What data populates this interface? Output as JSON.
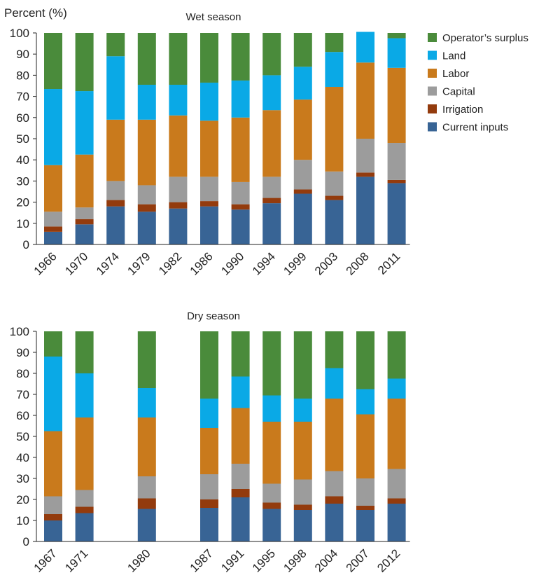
{
  "ylabel": "Percent (%)",
  "legend": [
    {
      "name": "Operator’s surplus",
      "color": "#4a8b3b"
    },
    {
      "name": "Land",
      "color": "#0aa9e6"
    },
    {
      "name": "Labor",
      "color": "#c97a1c"
    },
    {
      "name": "Capital",
      "color": "#9c9c9c"
    },
    {
      "name": "Irrigation",
      "color": "#933b0d"
    },
    {
      "name": "Current inputs",
      "color": "#386495"
    }
  ],
  "chart_data": [
    {
      "type": "bar",
      "stacked": true,
      "title": "Wet season",
      "ylabel": "Percent (%)",
      "ylim": [
        0,
        100
      ],
      "yticks": [
        0,
        10,
        20,
        30,
        40,
        50,
        60,
        70,
        80,
        90,
        100
      ],
      "categories": [
        "1966",
        "1970",
        "1974",
        "1979",
        "1982",
        "1986",
        "1990",
        "1994",
        "1999",
        "2003",
        "2008",
        "2011"
      ],
      "series": [
        {
          "name": "Current inputs",
          "color": "#386495",
          "values": [
            6,
            9.5,
            18,
            15.5,
            17,
            18,
            16.5,
            19.5,
            24,
            21,
            32,
            29
          ]
        },
        {
          "name": "Irrigation",
          "color": "#933b0d",
          "values": [
            2.5,
            2.5,
            3,
            3.5,
            3,
            2.5,
            2.5,
            2.5,
            2,
            2,
            2,
            1.5
          ]
        },
        {
          "name": "Capital",
          "color": "#9c9c9c",
          "values": [
            7,
            5.5,
            9,
            9,
            12,
            11.5,
            10.5,
            10,
            14,
            11.5,
            16,
            17.5
          ]
        },
        {
          "name": "Labor",
          "color": "#c97a1c",
          "values": [
            22,
            25,
            29,
            31,
            29,
            26.5,
            30.5,
            31.5,
            28.5,
            40,
            36,
            35.5
          ]
        },
        {
          "name": "Land",
          "color": "#0aa9e6",
          "values": [
            36,
            30,
            30,
            16.5,
            14.5,
            18,
            17.5,
            16.5,
            15.5,
            16.5,
            14.5,
            14
          ]
        },
        {
          "name": "Operator’s surplus",
          "color": "#4a8b3b",
          "values": [
            26.5,
            27.5,
            11,
            24.5,
            24.5,
            23.5,
            22.5,
            20,
            16,
            9,
            0,
            2.5
          ]
        }
      ]
    },
    {
      "type": "bar",
      "stacked": true,
      "title": "Dry season",
      "ylim": [
        0,
        100
      ],
      "yticks": [
        0,
        10,
        20,
        30,
        40,
        50,
        60,
        70,
        80,
        90,
        100
      ],
      "categories": [
        "1967",
        "1971",
        "1980",
        "1987",
        "1991",
        "1995",
        "1998",
        "2004",
        "2007",
        "2012"
      ],
      "slots": [
        0,
        1,
        3,
        5,
        6,
        7,
        8,
        9,
        10,
        11
      ],
      "series": [
        {
          "name": "Current inputs",
          "color": "#386495",
          "values": [
            10,
            13.5,
            15.5,
            16,
            21,
            15.5,
            15,
            18,
            15,
            18
          ]
        },
        {
          "name": "Irrigation",
          "color": "#933b0d",
          "values": [
            3,
            3,
            5,
            4,
            4,
            3,
            2.5,
            3.5,
            2,
            2.5
          ]
        },
        {
          "name": "Capital",
          "color": "#9c9c9c",
          "values": [
            8.5,
            8,
            10.5,
            12,
            12,
            9,
            12,
            12,
            13,
            14
          ]
        },
        {
          "name": "Labor",
          "color": "#c97a1c",
          "values": [
            31,
            34.5,
            28,
            22,
            26.5,
            29.5,
            27.5,
            34.5,
            30.5,
            33.5
          ]
        },
        {
          "name": "Land",
          "color": "#0aa9e6",
          "values": [
            35.5,
            21,
            14,
            14,
            15,
            12.5,
            11,
            14.5,
            12,
            9.5
          ]
        },
        {
          "name": "Operator’s surplus",
          "color": "#4a8b3b",
          "values": [
            12,
            20,
            27,
            32,
            21.5,
            30.5,
            32,
            17.5,
            27.5,
            22.5
          ]
        }
      ]
    }
  ]
}
